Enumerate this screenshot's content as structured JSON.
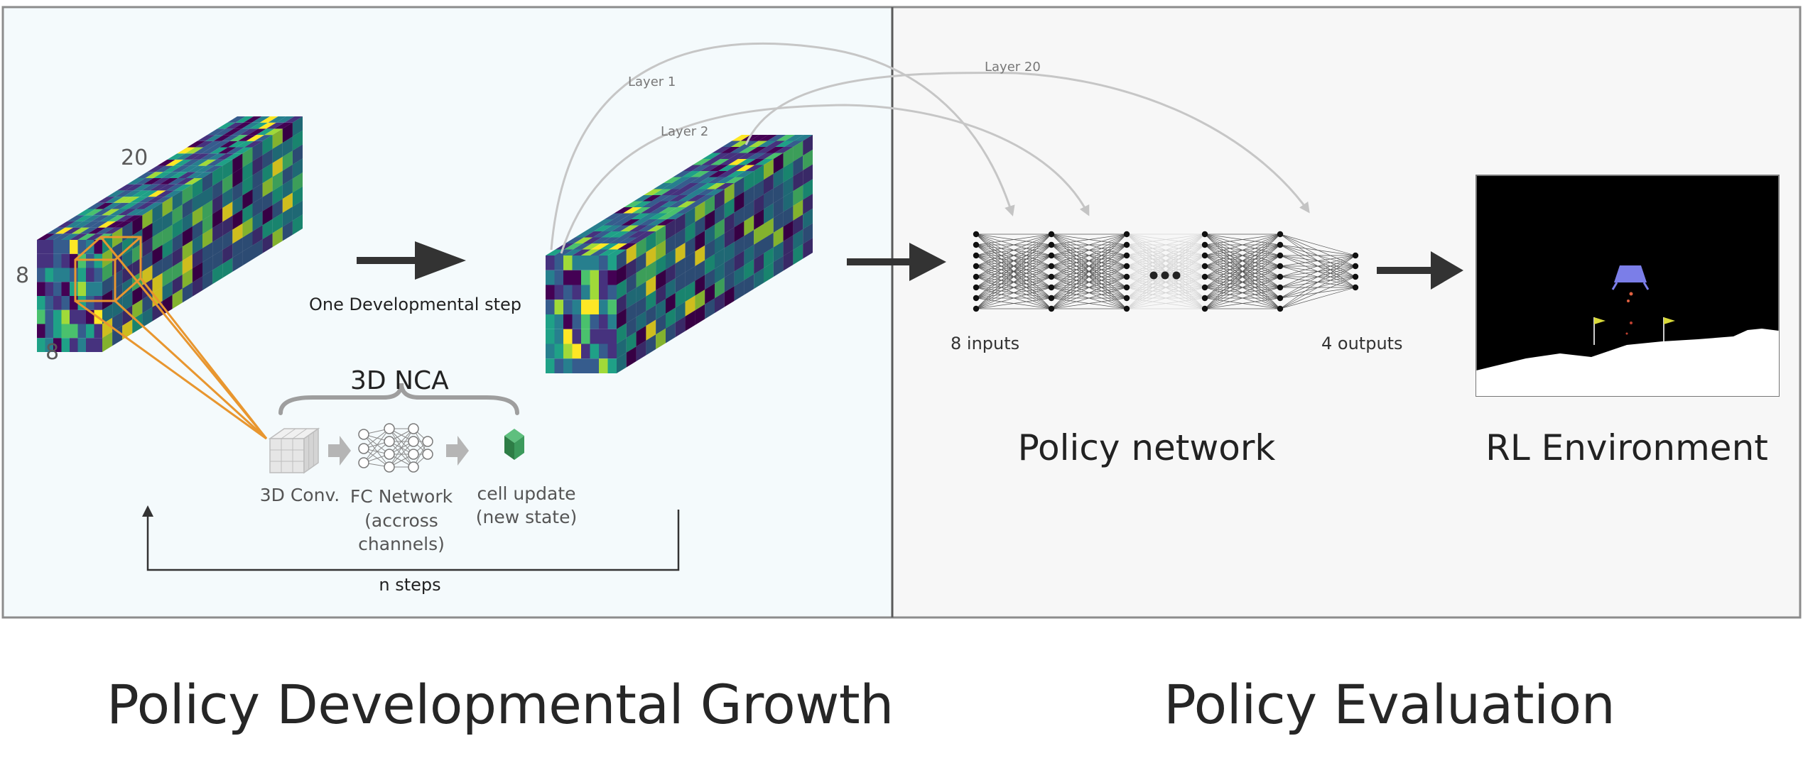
{
  "colors": {
    "left_panel_bg": "#f4fafc",
    "right_panel_bg": "#f7f7f7",
    "panel_border": "#8c8c8c",
    "divider": "#5a5a5a",
    "orange": "#e8962f",
    "arrow_gray": "#c4c4c4",
    "arrow_dark": "#333333",
    "cell_green": "#3c9a5c",
    "env_bg": "#000000",
    "terrain": "#ffffff",
    "lander": "#7b7ee8",
    "viridis": [
      "#440154",
      "#46327e",
      "#365c8d",
      "#277f8e",
      "#1fa187",
      "#4ac16d",
      "#a0da39",
      "#fde725"
    ]
  },
  "left_panel": {
    "cube_label_depth": "20",
    "cube_label_height": "8",
    "cube_label_width": "8",
    "dev_step_label": "One Developmental step",
    "nca_label": "3D NCA",
    "conv_label": "3D Conv.",
    "fc_label_lines": [
      "FC Network",
      "(accross",
      "channels)"
    ],
    "cell_update_lines": [
      "cell update",
      "(new state)"
    ],
    "loop_label": "n steps",
    "layer_labels": [
      "Layer 1",
      "Layer 2",
      "Layer 20"
    ]
  },
  "right_panel": {
    "inputs_label": "8 inputs",
    "outputs_label": "4 outputs",
    "policy_title": "Policy network",
    "env_title": "RL Environment",
    "network": {
      "input_nodes": 8,
      "output_nodes": 4
    }
  },
  "captions": {
    "left": "Policy Developmental Growth",
    "right": "Policy Evaluation"
  }
}
